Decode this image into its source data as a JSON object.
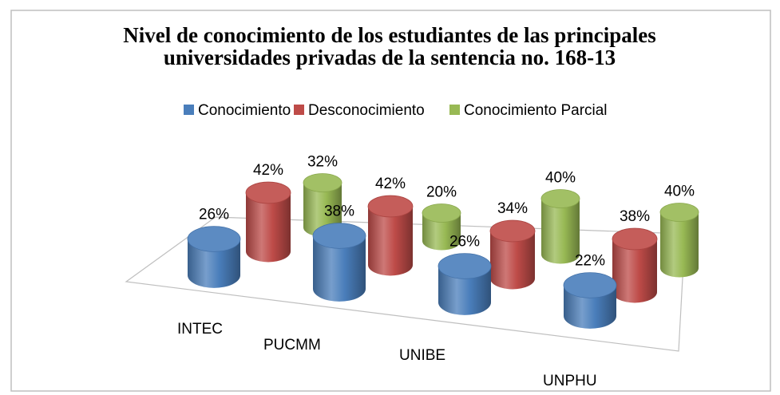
{
  "chart_data": {
    "type": "cylinder3d",
    "title": "Nivel de conocimiento de los estudiantes de las principales universidades privadas de la sentencia no. 168-13",
    "categories": [
      "INTEC",
      "PUCMM",
      "UNIBE",
      "UNPHU"
    ],
    "series": [
      {
        "name": "Conocimiento",
        "color": "#4a7ebb",
        "values": [
          26,
          38,
          26,
          22
        ],
        "value_labels": [
          "26%",
          "38%",
          "26%",
          "22%"
        ]
      },
      {
        "name": "Desconocimiento",
        "color": "#be4b48",
        "values": [
          42,
          42,
          34,
          38
        ],
        "value_labels": [
          "42%",
          "42%",
          "34%",
          "38%"
        ]
      },
      {
        "name": "Conocimiento Parcial",
        "color": "#98b954",
        "values": [
          32,
          20,
          40,
          40
        ],
        "value_labels": [
          "32%",
          "20%",
          "40%",
          "40%"
        ]
      }
    ],
    "legend": "top"
  }
}
